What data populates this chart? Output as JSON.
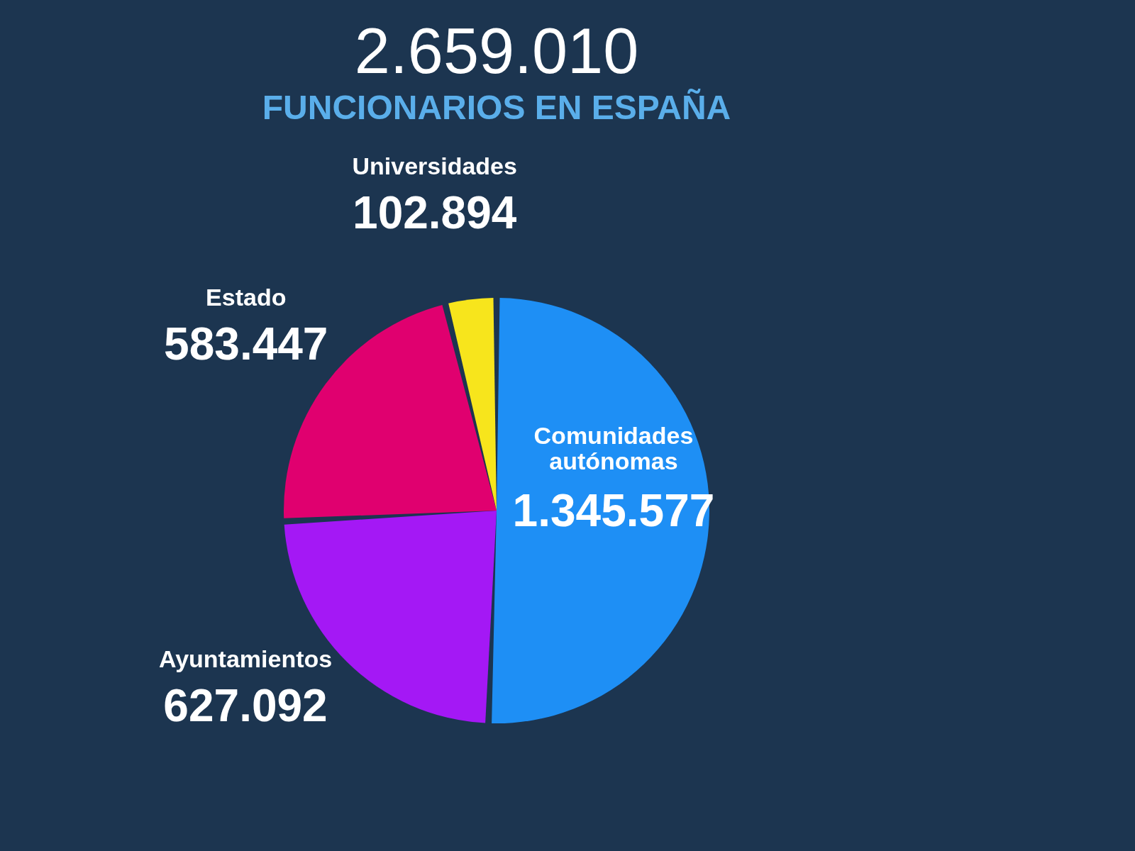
{
  "chart_data": {
    "type": "pie",
    "title": "2.659.010",
    "subtitle": "FUNCIONARIOS EN ESPAÑA",
    "categories": [
      "Comunidades autónomas",
      "Ayuntamientos",
      "Estado",
      "Universidades"
    ],
    "values": [
      1345577,
      627092,
      583447,
      102894
    ],
    "value_labels": [
      "1.345.577",
      "627.092",
      "583.447",
      "102.894"
    ],
    "colors": [
      "#1e8ff5",
      "#a418f5",
      "#e0006f",
      "#f7e51c"
    ],
    "legend": false
  }
}
